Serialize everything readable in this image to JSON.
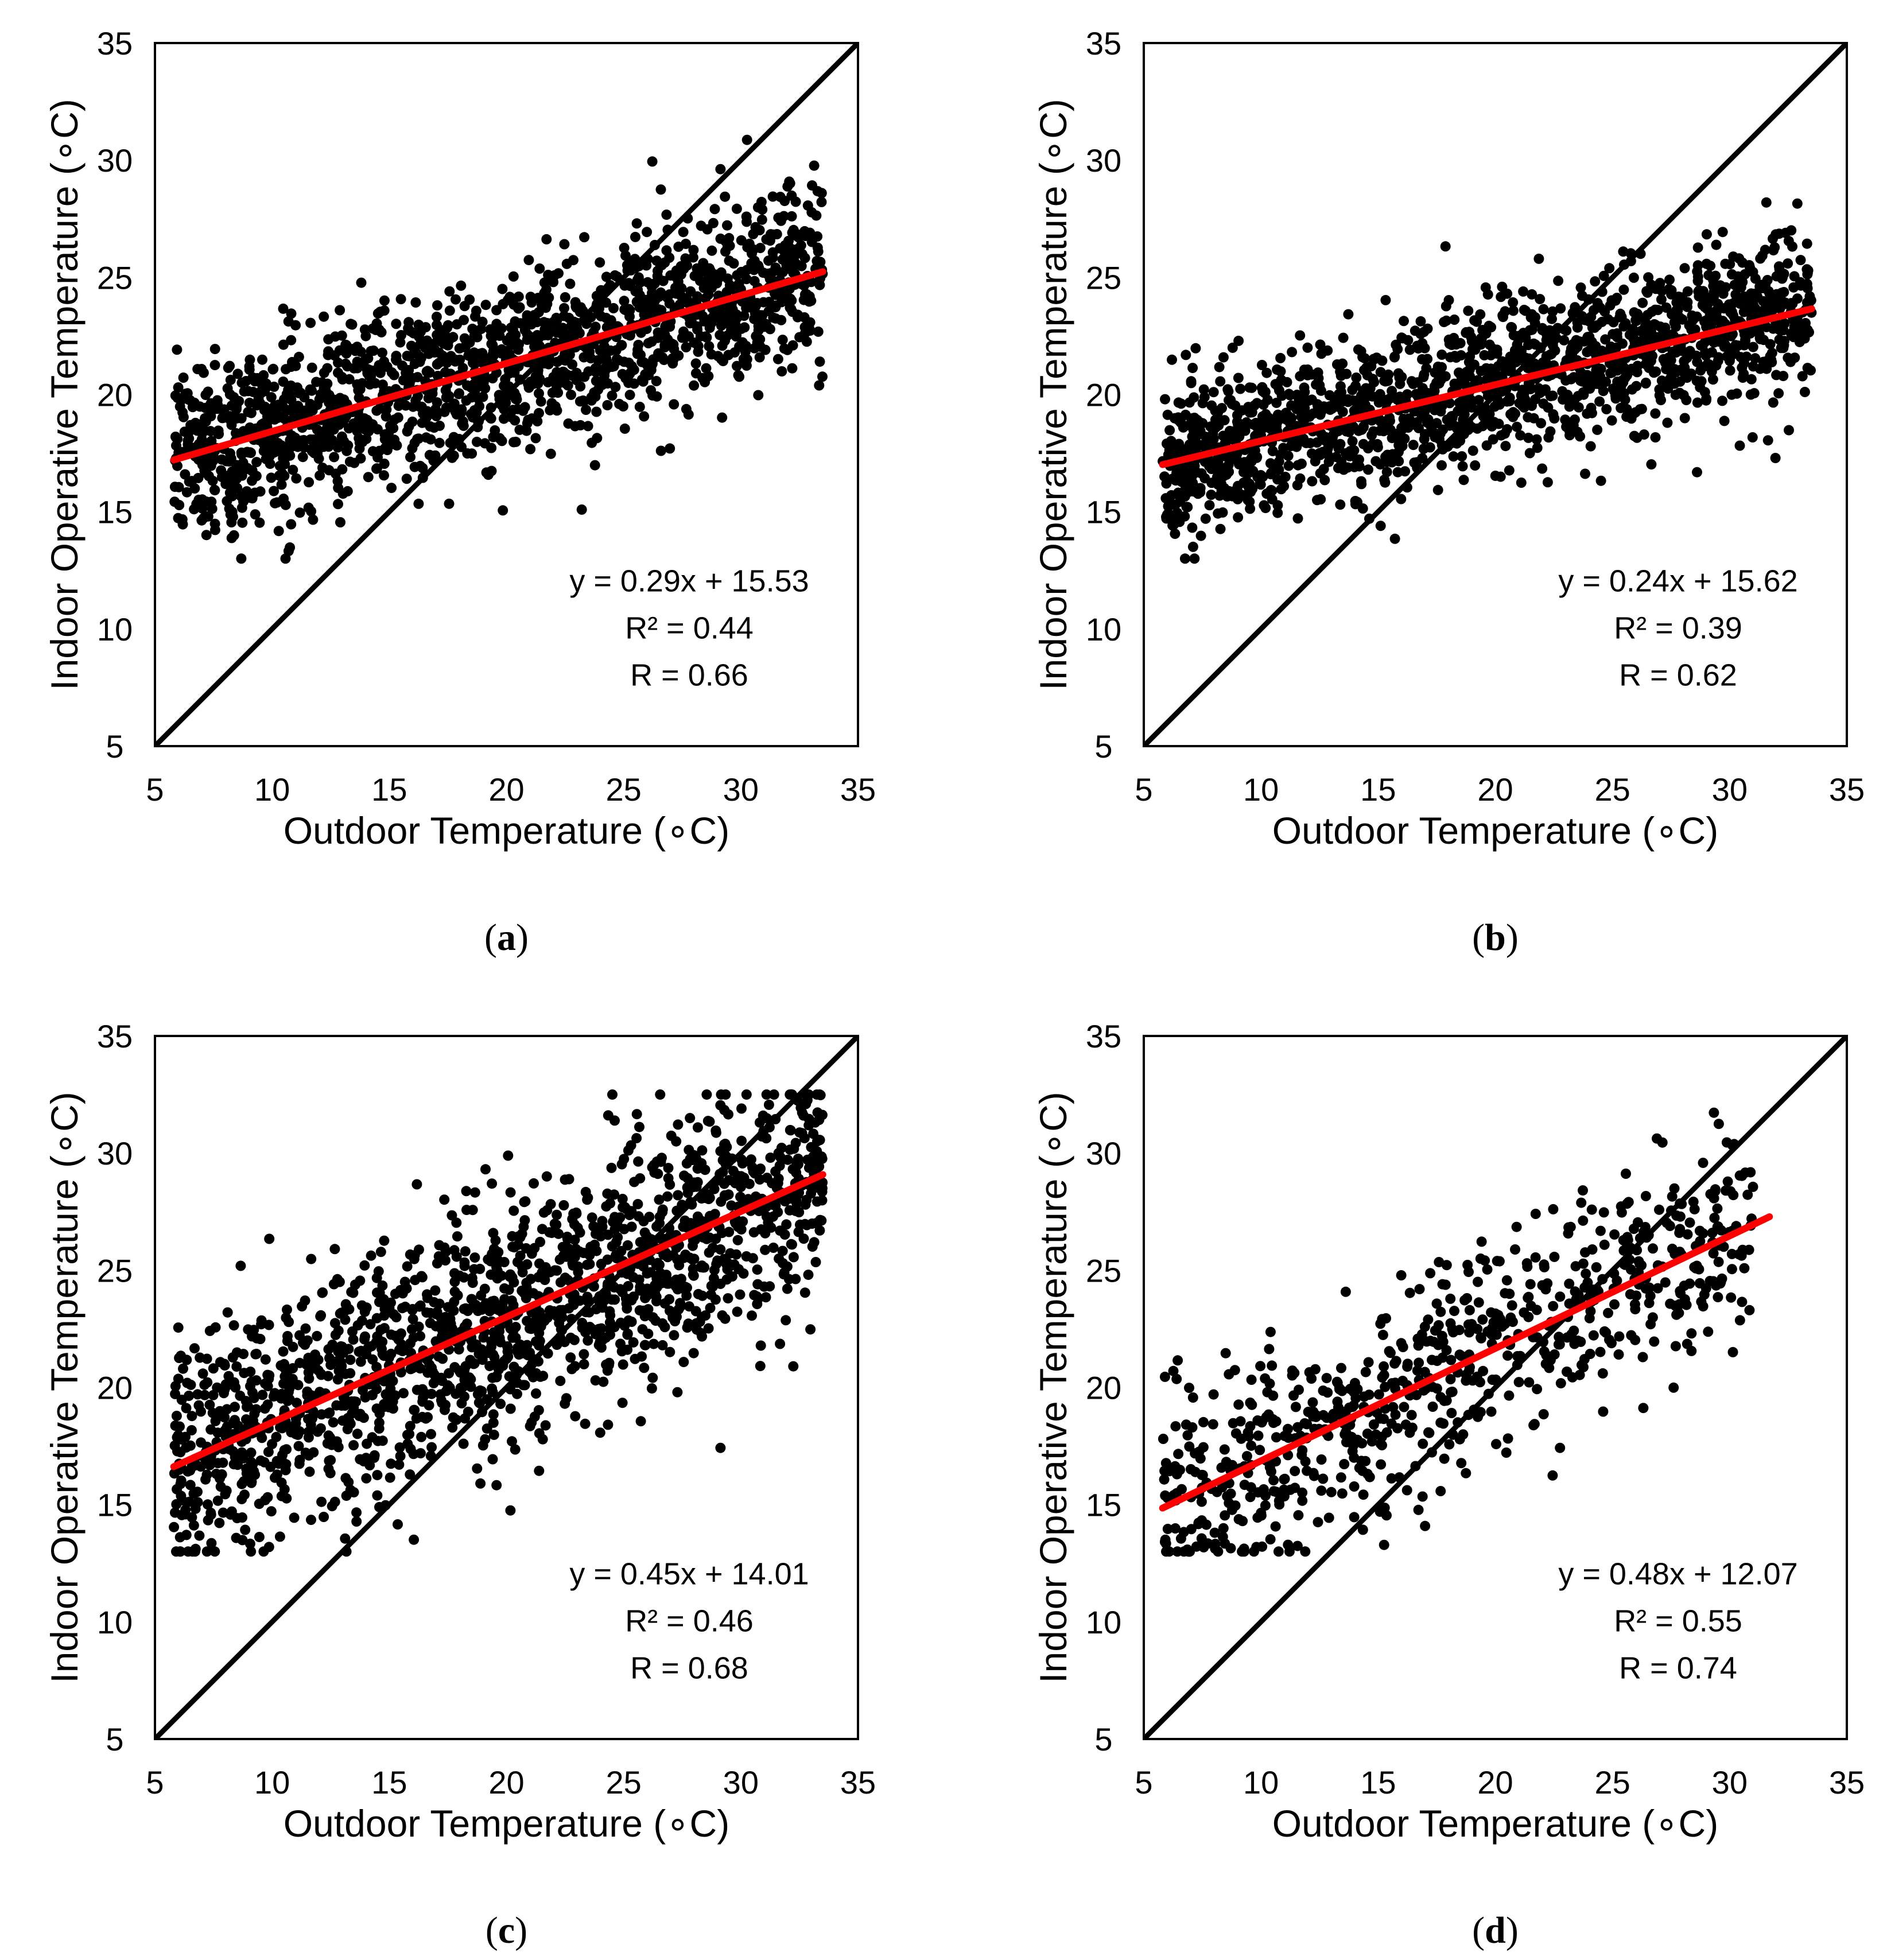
{
  "figure": {
    "panel_labels": [
      "(a)",
      "(b)",
      "(c)",
      "(d)"
    ]
  },
  "colors": {
    "points": "#000000",
    "fit_line": "#ff0000",
    "identity_line": "#000000",
    "frame": "#000000"
  },
  "chart_data": [
    {
      "id": "a",
      "type": "scatter",
      "panel_label": "(a)",
      "xlabel": "Outdoor Temperature (∘C)",
      "ylabel": "Indoor Operative Temperature (∘C)",
      "xlim": [
        5,
        35
      ],
      "ylim": [
        5,
        35
      ],
      "xticks": [
        5,
        10,
        15,
        20,
        25,
        30,
        35
      ],
      "yticks": [
        5,
        10,
        15,
        20,
        25,
        30,
        35
      ],
      "fit": {
        "slope": 0.29,
        "intercept": 15.53,
        "x_range": [
          5.8,
          33.5
        ]
      },
      "identity_line": {
        "from": [
          5,
          5
        ],
        "to": [
          35,
          35
        ]
      },
      "annotations": [
        "y = 0.29x + 15.53",
        "R² = 0.44",
        "R = 0.66"
      ],
      "scatter_model": {
        "n": 1700,
        "x_range": [
          5.8,
          33.5
        ],
        "slope": 0.29,
        "intercept": 15.53,
        "spread": 1.9,
        "seed": 11
      }
    },
    {
      "id": "b",
      "type": "scatter",
      "panel_label": "(b)",
      "xlabel": "Outdoor Temperature (∘C)",
      "ylabel": "Indoor Operative Temperature (∘C)",
      "xlim": [
        5,
        35
      ],
      "ylim": [
        5,
        35
      ],
      "xticks": [
        5,
        10,
        15,
        20,
        25,
        30,
        35
      ],
      "yticks": [
        5,
        10,
        15,
        20,
        25,
        30,
        35
      ],
      "fit": {
        "slope": 0.24,
        "intercept": 15.62,
        "x_range": [
          5.8,
          33.5
        ]
      },
      "identity_line": {
        "from": [
          5,
          5
        ],
        "to": [
          35,
          35
        ]
      },
      "annotations": [
        "y = 0.24x + 15.62",
        "R² = 0.39",
        "R = 0.62"
      ],
      "scatter_model": {
        "n": 1700,
        "x_range": [
          5.8,
          33.5
        ],
        "slope": 0.24,
        "intercept": 15.62,
        "spread": 1.7,
        "seed": 23
      }
    },
    {
      "id": "c",
      "type": "scatter",
      "panel_label": "(c)",
      "xlabel": "Outdoor Temperature (∘C)",
      "ylabel": "Indoor Operative Temperature (∘C)",
      "xlim": [
        5,
        35
      ],
      "ylim": [
        5,
        35
      ],
      "xticks": [
        5,
        10,
        15,
        20,
        25,
        30,
        35
      ],
      "yticks": [
        5,
        10,
        15,
        20,
        25,
        30,
        35
      ],
      "fit": {
        "slope": 0.45,
        "intercept": 14.01,
        "x_range": [
          5.8,
          33.5
        ]
      },
      "identity_line": {
        "from": [
          5,
          5
        ],
        "to": [
          35,
          35
        ]
      },
      "annotations": [
        "y = 0.45x + 14.01",
        "R² = 0.46",
        "R = 0.68"
      ],
      "scatter_model": {
        "n": 1700,
        "x_range": [
          5.8,
          33.5
        ],
        "slope": 0.45,
        "intercept": 14.01,
        "spread": 2.6,
        "seed": 37
      }
    },
    {
      "id": "d",
      "type": "scatter",
      "panel_label": "(d)",
      "xlabel": "Outdoor Temperature (∘C)",
      "ylabel": "Indoor Operative Temperature (∘C)",
      "xlim": [
        5,
        35
      ],
      "ylim": [
        5,
        35
      ],
      "xticks": [
        5,
        10,
        15,
        20,
        25,
        30,
        35
      ],
      "yticks": [
        5,
        10,
        15,
        20,
        25,
        30,
        35
      ],
      "fit": {
        "slope": 0.48,
        "intercept": 12.07,
        "x_range": [
          5.8,
          31.7
        ]
      },
      "identity_line": {
        "from": [
          5,
          5
        ],
        "to": [
          35,
          35
        ]
      },
      "annotations": [
        "y = 0.48x + 12.07",
        "R² = 0.55",
        "R = 0.74"
      ],
      "scatter_model": {
        "n": 750,
        "x_range": [
          5.8,
          31.0
        ],
        "slope": 0.48,
        "intercept": 12.07,
        "spread": 2.3,
        "seed": 53
      }
    }
  ]
}
